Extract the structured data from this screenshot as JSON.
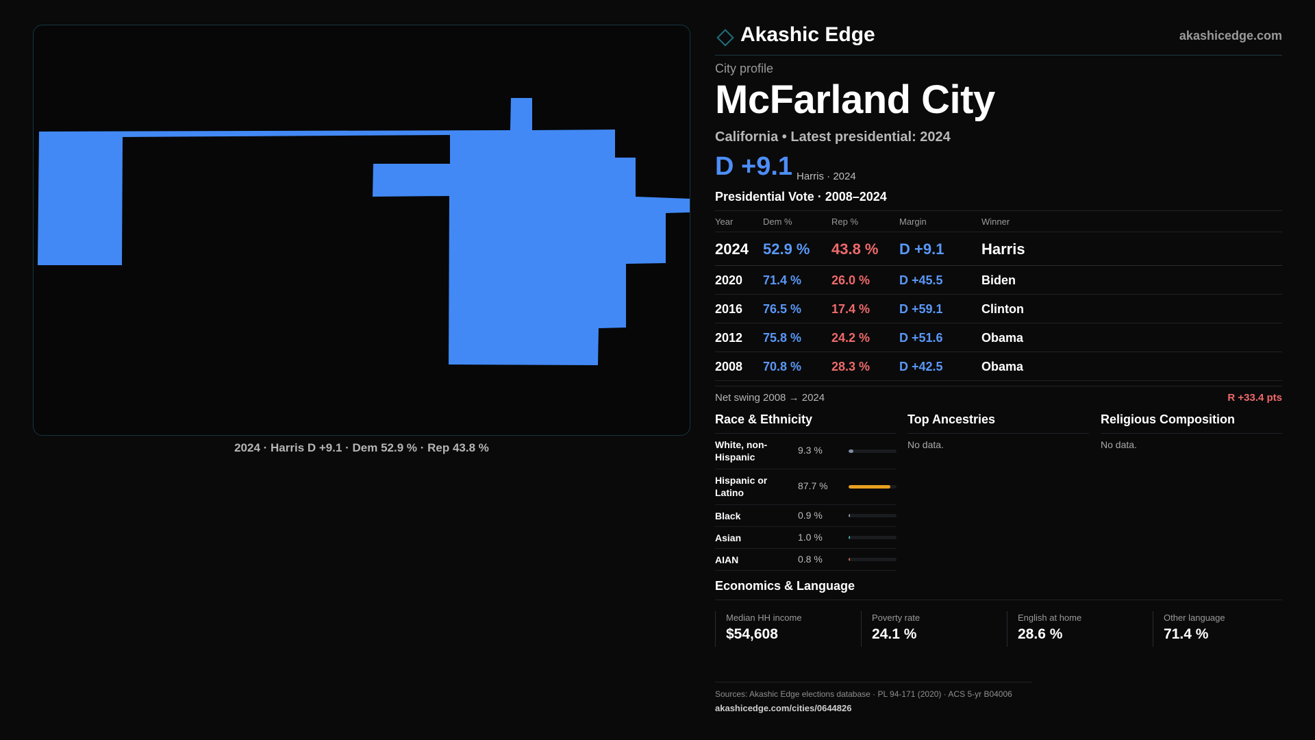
{
  "brand": {
    "name": "Akashic Edge",
    "url": "akashicedge.com",
    "accent": "#1f6f7a"
  },
  "profile": {
    "eyebrow": "City profile",
    "city": "McFarland City",
    "subtitle": "California • Latest presidential: 2024",
    "margin": "D +9.1",
    "margin_note": "Harris · 2024"
  },
  "map": {
    "caption": "2024 · Harris D +9.1 · Dem 52.9 % · Rep 43.8 %",
    "fill_color": "#4289f5"
  },
  "vote": {
    "title": "Presidential Vote · 2008–2024",
    "headers": [
      "Year",
      "Dem %",
      "Rep %",
      "Margin",
      "Winner"
    ],
    "rows": [
      {
        "year": "2024",
        "dem": "52.9 %",
        "rep": "43.8 %",
        "margin": "D +9.1",
        "winner": "Harris"
      },
      {
        "year": "2020",
        "dem": "71.4 %",
        "rep": "26.0 %",
        "margin": "D +45.5",
        "winner": "Biden"
      },
      {
        "year": "2016",
        "dem": "76.5 %",
        "rep": "17.4 %",
        "margin": "D +59.1",
        "winner": "Clinton"
      },
      {
        "year": "2012",
        "dem": "75.8 %",
        "rep": "24.2 %",
        "margin": "D +51.6",
        "winner": "Obama"
      },
      {
        "year": "2008",
        "dem": "70.8 %",
        "rep": "28.3 %",
        "margin": "D +42.5",
        "winner": "Obama"
      }
    ],
    "swing_label": "Net swing 2008 → 2024",
    "swing_value": "R +33.4 pts",
    "dem_color": "#5a98f7",
    "rep_color": "#f06a6a"
  },
  "race": {
    "title": "Race & Ethnicity",
    "rows": [
      {
        "label": "White, non-Hispanic",
        "pct": "9.3 %",
        "share": 0.093,
        "color": "#7f8ba3"
      },
      {
        "label": "Hispanic or Latino",
        "pct": "87.7 %",
        "share": 0.877,
        "color": "#e7a11f"
      },
      {
        "label": "Black",
        "pct": "0.9 %",
        "share": 0.009,
        "color": "#8f9aad"
      },
      {
        "label": "Asian",
        "pct": "1.0 %",
        "share": 0.01,
        "color": "#3fb2a8"
      },
      {
        "label": "AIAN",
        "pct": "0.8 %",
        "share": 0.008,
        "color": "#c46b4b"
      }
    ]
  },
  "ancestries": {
    "title": "Top Ancestries",
    "empty": "No data."
  },
  "religion": {
    "title": "Religious Composition",
    "empty": "No data."
  },
  "economics": {
    "title": "Economics & Language",
    "stats": [
      {
        "label": "Median HH income",
        "value": "$54,608"
      },
      {
        "label": "Poverty rate",
        "value": "24.1 %"
      },
      {
        "label": "English at home",
        "value": "28.6 %"
      },
      {
        "label": "Other language",
        "value": "71.4 %"
      }
    ]
  },
  "sources": {
    "line": "Sources: Akashic Edge elections database · PL 94-171 (2020) · ACS 5-yr B04006",
    "url": "akashicedge.com/cities/0644826"
  }
}
